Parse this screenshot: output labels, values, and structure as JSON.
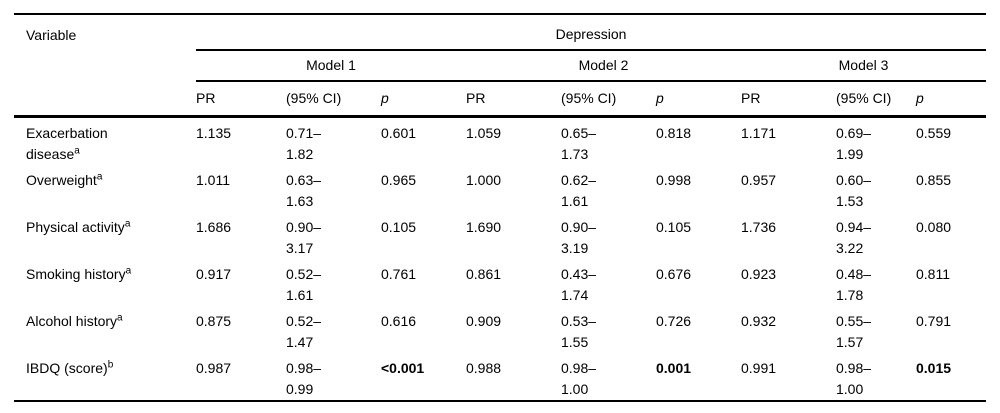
{
  "page": {
    "background": "#ffffff",
    "text_color": "#000000",
    "rule_color": "#000000"
  },
  "table": {
    "header": {
      "variable": "Variable",
      "depression": "Depression",
      "models": [
        "Model 1",
        "Model 2",
        "Model 3"
      ],
      "stat_pr": "PR",
      "stat_ci": "(95% CI)",
      "stat_p": "p"
    },
    "rows": [
      {
        "variable": {
          "line1": "Exacerbation",
          "line2": "disease",
          "sup": "a"
        },
        "m1": {
          "pr": "1.135",
          "ci1": "0.71–",
          "ci2": "1.82",
          "p": "0.601"
        },
        "m2": {
          "pr": "1.059",
          "ci1": "0.65–",
          "ci2": "1.73",
          "p": "0.818"
        },
        "m3": {
          "pr": "1.171",
          "ci1": "0.69–",
          "ci2": "1.99",
          "p": "0.559"
        }
      },
      {
        "variable": {
          "line1": "Overweight",
          "sup": "a"
        },
        "m1": {
          "pr": "1.011",
          "ci1": "0.63–",
          "ci2": "1.63",
          "p": "0.965"
        },
        "m2": {
          "pr": "1.000",
          "ci1": "0.62–",
          "ci2": "1.61",
          "p": "0.998"
        },
        "m3": {
          "pr": "0.957",
          "ci1": "0.60–",
          "ci2": "1.53",
          "p": "0.855"
        }
      },
      {
        "variable": {
          "line1": "Physical activity",
          "sup": "a"
        },
        "m1": {
          "pr": "1.686",
          "ci1": "0.90–",
          "ci2": "3.17",
          "p": "0.105"
        },
        "m2": {
          "pr": "1.690",
          "ci1": "0.90–",
          "ci2": "3.19",
          "p": "0.105"
        },
        "m3": {
          "pr": "1.736",
          "ci1": "0.94–",
          "ci2": "3.22",
          "p": "0.080"
        }
      },
      {
        "variable": {
          "line1": "Smoking history",
          "sup": "a"
        },
        "m1": {
          "pr": "0.917",
          "ci1": "0.52–",
          "ci2": "1.61",
          "p": "0.761"
        },
        "m2": {
          "pr": "0.861",
          "ci1": "0.43–",
          "ci2": "1.74",
          "p": "0.676"
        },
        "m3": {
          "pr": "0.923",
          "ci1": "0.48–",
          "ci2": "1.78",
          "p": "0.811"
        }
      },
      {
        "variable": {
          "line1": "Alcohol history",
          "sup": "a"
        },
        "m1": {
          "pr": "0.875",
          "ci1": "0.52–",
          "ci2": "1.47",
          "p": "0.616"
        },
        "m2": {
          "pr": "0.909",
          "ci1": "0.53–",
          "ci2": "1.55",
          "p": "0.726"
        },
        "m3": {
          "pr": "0.932",
          "ci1": "0.55–",
          "ci2": "1.57",
          "p": "0.791"
        }
      },
      {
        "variable": {
          "line1": "IBDQ (score)",
          "sup": "b"
        },
        "m1": {
          "pr": "0.987",
          "ci1": "0.98–",
          "ci2": "0.99",
          "p": "<0.001"
        },
        "m2": {
          "pr": "0.988",
          "ci1": "0.98–",
          "ci2": "1.00",
          "p": "0.001"
        },
        "m3": {
          "pr": "0.991",
          "ci1": "0.98–",
          "ci2": "1.00",
          "p": "0.015"
        }
      }
    ]
  }
}
